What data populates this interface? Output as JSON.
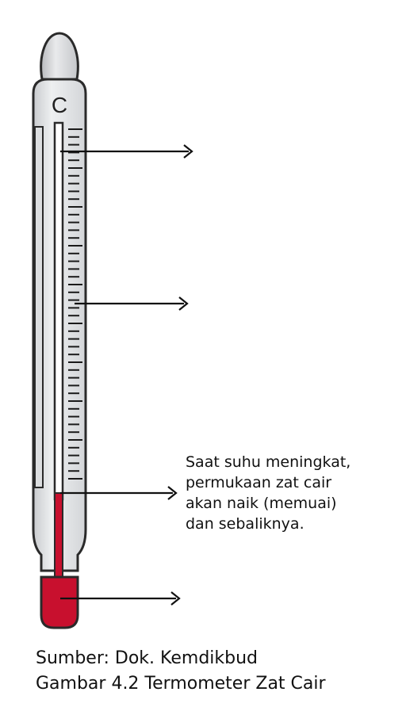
{
  "scale": {
    "unit": "C"
  },
  "thermometer": {
    "liquid_color": "#c8102e",
    "glass_color": "#e6e7e9",
    "outline_color": "#2a2a2a"
  },
  "labels": {
    "liquid": "Saat suhu meningkat,\npermukaan zat cair\nakan naik (memuai)\ndan sebaliknya."
  },
  "caption": {
    "source": "Sumber: Dok. Kemdikbud",
    "figure": "Gambar 4.2 Termometer Zat Cair"
  }
}
